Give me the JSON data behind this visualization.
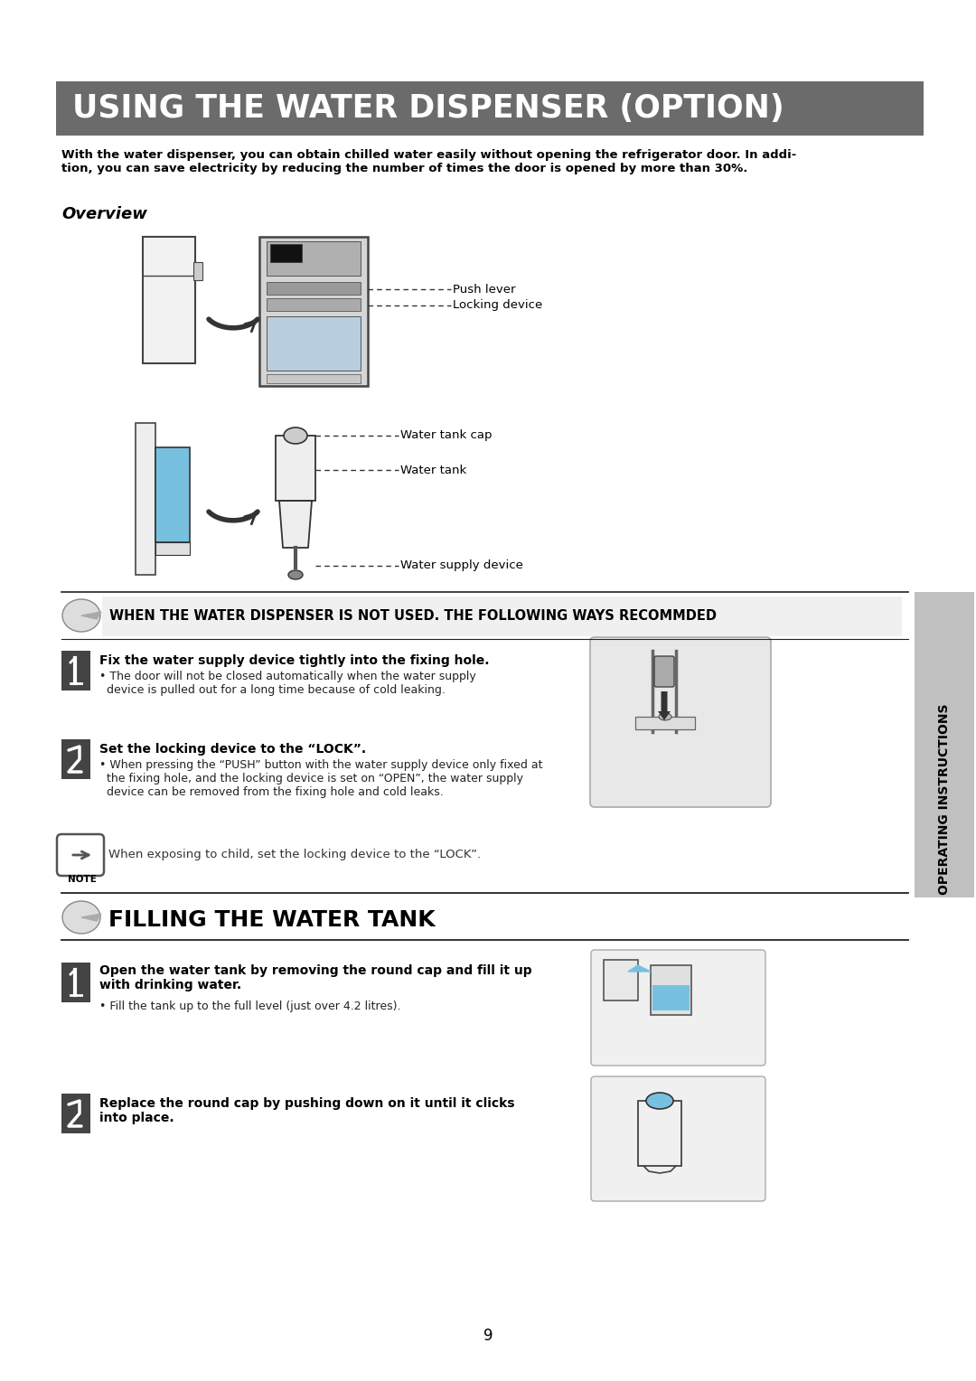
{
  "title": "USING THE WATER DISPENSER (OPTION)",
  "title_bg": "#6b6b6b",
  "title_color": "#ffffff",
  "intro_text": "With the water dispenser, you can obtain chilled water easily without opening the refrigerator door. In addi-\ntion, you can save electricity by reducing the number of times the door is opened by more than 30%.",
  "overview_label": "Overview",
  "lbl_push": "Push lever",
  "lbl_locking": "Locking device",
  "lbl_tankcap": "Water tank cap",
  "lbl_tank": "Water tank",
  "lbl_supply": "Water supply device",
  "sec2_title": "WHEN THE WATER DISPENSER IS NOT USED. THE FOLLOWING WAYS RECOMMDED",
  "step1_bold": "Fix the water supply device tightly into the fixing hole.",
  "step1_sub": "• The door will not be closed automatically when the water supply\n  device is pulled out for a long time because of cold leaking.",
  "step2_bold": "Set the locking device to the “LOCK”.",
  "step2_sub": "• When pressing the “PUSH” button with the water supply device only fixed at\n  the fixing hole, and the locking device is set on “OPEN”, the water supply\n  device can be removed from the fixing hole and cold leaks.",
  "note_text": "When exposing to child, set the locking device to the “LOCK”.",
  "sec3_title": "FILLING THE WATER TANK",
  "fs1_bold": "Open the water tank by removing the round cap and fill it up\nwith drinking water.",
  "fs1_sub": "• Fill the tank up to the full level (just over 4.2 litres).",
  "fs2_bold": "Replace the round cap by pushing down on it until it clicks\ninto place.",
  "page_num": "9",
  "sidebar_text": "OPERATING INSTRUCTIONS",
  "bg": "#ffffff",
  "sidebar_bg": "#c0c0c0",
  "title_bg_color": "#6b6b6b"
}
